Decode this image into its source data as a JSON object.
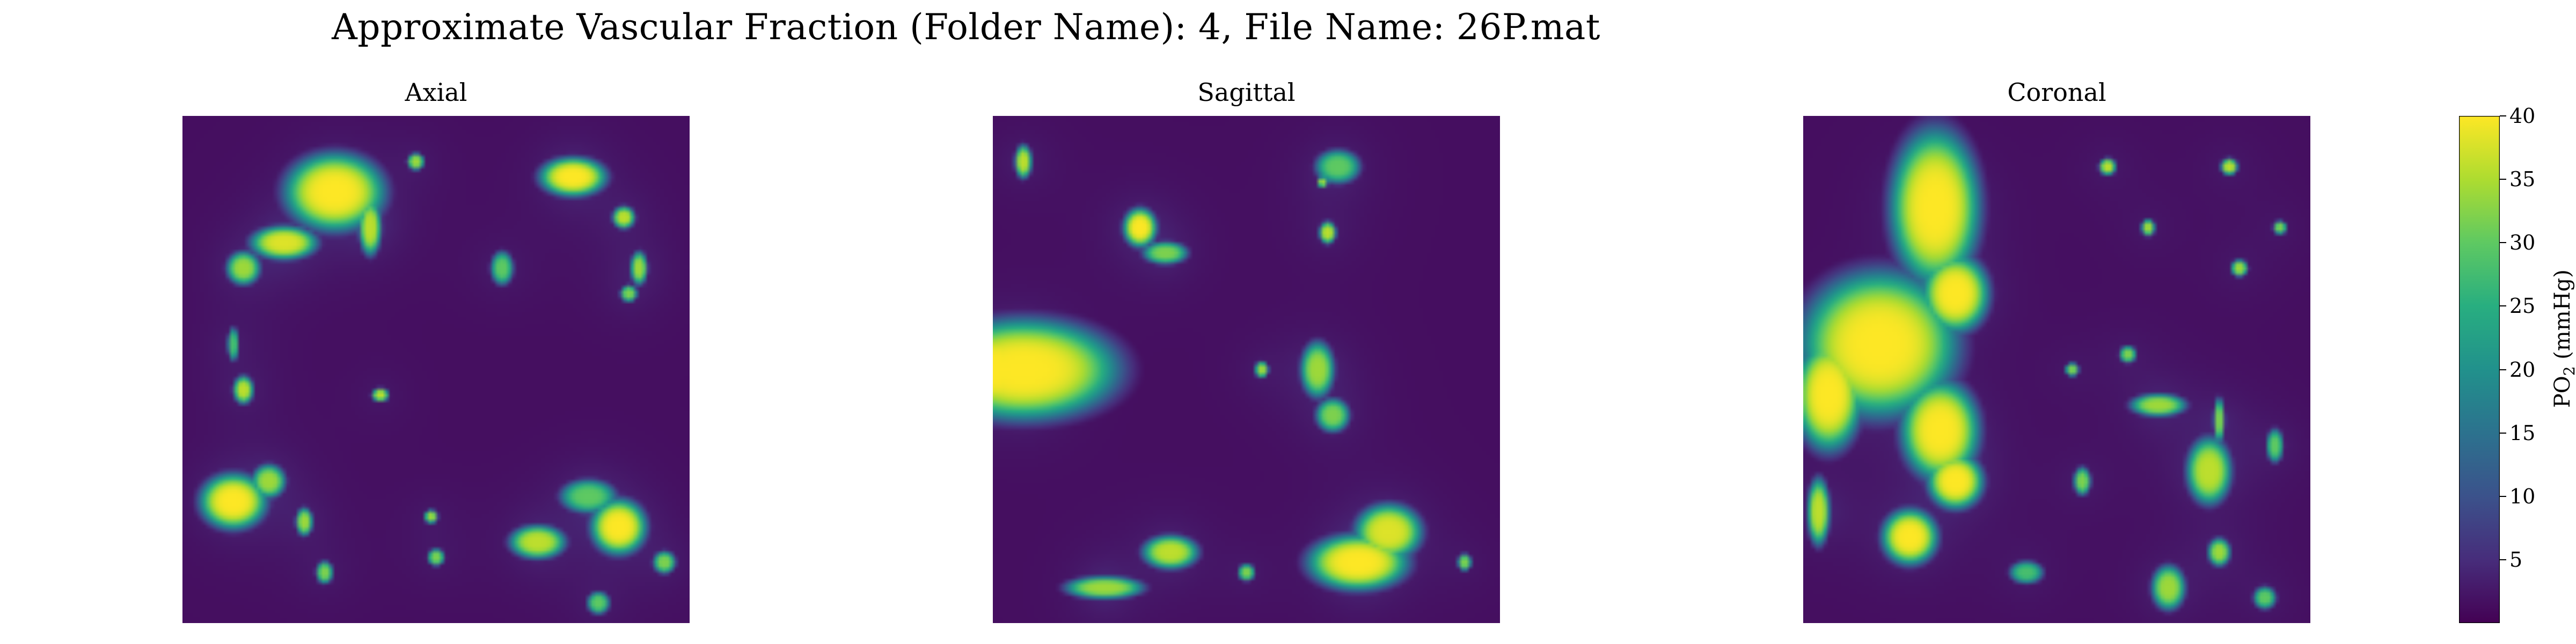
{
  "figure": {
    "suptitle": "Approximate Vascular Fraction (Folder Name): 4, File Name: 26P.mat"
  },
  "chart_data": {
    "type": "heatmap",
    "colormap": "viridis",
    "panels": [
      {
        "title": "Axial",
        "hotspots": [
          {
            "x": 0.3,
            "y": 0.15,
            "rx": 0.09,
            "ry": 0.07,
            "v": 40
          },
          {
            "x": 0.2,
            "y": 0.25,
            "rx": 0.06,
            "ry": 0.03,
            "v": 38
          },
          {
            "x": 0.12,
            "y": 0.3,
            "rx": 0.03,
            "ry": 0.03,
            "v": 34
          },
          {
            "x": 0.37,
            "y": 0.22,
            "rx": 0.02,
            "ry": 0.05,
            "v": 36
          },
          {
            "x": 0.46,
            "y": 0.09,
            "rx": 0.015,
            "ry": 0.015,
            "v": 34
          },
          {
            "x": 0.77,
            "y": 0.12,
            "rx": 0.06,
            "ry": 0.035,
            "v": 40
          },
          {
            "x": 0.87,
            "y": 0.2,
            "rx": 0.02,
            "ry": 0.02,
            "v": 36
          },
          {
            "x": 0.9,
            "y": 0.3,
            "rx": 0.015,
            "ry": 0.03,
            "v": 34
          },
          {
            "x": 0.63,
            "y": 0.3,
            "rx": 0.02,
            "ry": 0.03,
            "v": 30
          },
          {
            "x": 0.88,
            "y": 0.35,
            "rx": 0.015,
            "ry": 0.015,
            "v": 32
          },
          {
            "x": 0.12,
            "y": 0.54,
            "rx": 0.018,
            "ry": 0.025,
            "v": 36
          },
          {
            "x": 0.1,
            "y": 0.45,
            "rx": 0.01,
            "ry": 0.03,
            "v": 28
          },
          {
            "x": 0.39,
            "y": 0.55,
            "rx": 0.015,
            "ry": 0.012,
            "v": 36
          },
          {
            "x": 0.1,
            "y": 0.76,
            "rx": 0.06,
            "ry": 0.05,
            "v": 40
          },
          {
            "x": 0.17,
            "y": 0.72,
            "rx": 0.03,
            "ry": 0.03,
            "v": 34
          },
          {
            "x": 0.24,
            "y": 0.8,
            "rx": 0.015,
            "ry": 0.025,
            "v": 34
          },
          {
            "x": 0.28,
            "y": 0.9,
            "rx": 0.015,
            "ry": 0.02,
            "v": 32
          },
          {
            "x": 0.49,
            "y": 0.79,
            "rx": 0.012,
            "ry": 0.012,
            "v": 34
          },
          {
            "x": 0.5,
            "y": 0.87,
            "rx": 0.015,
            "ry": 0.015,
            "v": 32
          },
          {
            "x": 0.7,
            "y": 0.84,
            "rx": 0.05,
            "ry": 0.03,
            "v": 36
          },
          {
            "x": 0.86,
            "y": 0.81,
            "rx": 0.05,
            "ry": 0.05,
            "v": 40
          },
          {
            "x": 0.8,
            "y": 0.75,
            "rx": 0.05,
            "ry": 0.03,
            "v": 30
          },
          {
            "x": 0.95,
            "y": 0.88,
            "rx": 0.02,
            "ry": 0.02,
            "v": 32
          },
          {
            "x": 0.82,
            "y": 0.96,
            "rx": 0.02,
            "ry": 0.02,
            "v": 30
          }
        ]
      },
      {
        "title": "Sagittal",
        "hotspots": [
          {
            "x": 0.06,
            "y": 0.5,
            "rx": 0.17,
            "ry": 0.09,
            "v": 40
          },
          {
            "x": 0.01,
            "y": 0.5,
            "rx": 0.05,
            "ry": 0.08,
            "v": 40
          },
          {
            "x": 0.06,
            "y": 0.09,
            "rx": 0.015,
            "ry": 0.03,
            "v": 36
          },
          {
            "x": 0.29,
            "y": 0.22,
            "rx": 0.03,
            "ry": 0.035,
            "v": 40
          },
          {
            "x": 0.34,
            "y": 0.27,
            "rx": 0.04,
            "ry": 0.02,
            "v": 32
          },
          {
            "x": 0.68,
            "y": 0.1,
            "rx": 0.04,
            "ry": 0.03,
            "v": 30
          },
          {
            "x": 0.66,
            "y": 0.23,
            "rx": 0.015,
            "ry": 0.02,
            "v": 36
          },
          {
            "x": 0.65,
            "y": 0.13,
            "rx": 0.01,
            "ry": 0.01,
            "v": 34
          },
          {
            "x": 0.64,
            "y": 0.5,
            "rx": 0.03,
            "ry": 0.05,
            "v": 34
          },
          {
            "x": 0.53,
            "y": 0.5,
            "rx": 0.012,
            "ry": 0.015,
            "v": 34
          },
          {
            "x": 0.67,
            "y": 0.59,
            "rx": 0.03,
            "ry": 0.03,
            "v": 32
          },
          {
            "x": 0.72,
            "y": 0.88,
            "rx": 0.09,
            "ry": 0.05,
            "v": 40
          },
          {
            "x": 0.78,
            "y": 0.82,
            "rx": 0.06,
            "ry": 0.05,
            "v": 38
          },
          {
            "x": 0.35,
            "y": 0.86,
            "rx": 0.05,
            "ry": 0.03,
            "v": 36
          },
          {
            "x": 0.22,
            "y": 0.93,
            "rx": 0.07,
            "ry": 0.02,
            "v": 34
          },
          {
            "x": 0.5,
            "y": 0.9,
            "rx": 0.015,
            "ry": 0.015,
            "v": 32
          },
          {
            "x": 0.93,
            "y": 0.88,
            "rx": 0.012,
            "ry": 0.015,
            "v": 32
          }
        ]
      },
      {
        "title": "Coronal",
        "hotspots": [
          {
            "x": 0.26,
            "y": 0.18,
            "rx": 0.08,
            "ry": 0.14,
            "v": 40
          },
          {
            "x": 0.3,
            "y": 0.35,
            "rx": 0.06,
            "ry": 0.07,
            "v": 40
          },
          {
            "x": 0.15,
            "y": 0.45,
            "rx": 0.14,
            "ry": 0.13,
            "v": 40
          },
          {
            "x": 0.05,
            "y": 0.55,
            "rx": 0.06,
            "ry": 0.1,
            "v": 40
          },
          {
            "x": 0.27,
            "y": 0.62,
            "rx": 0.07,
            "ry": 0.09,
            "v": 40
          },
          {
            "x": 0.3,
            "y": 0.72,
            "rx": 0.05,
            "ry": 0.05,
            "v": 40
          },
          {
            "x": 0.03,
            "y": 0.78,
            "rx": 0.02,
            "ry": 0.06,
            "v": 36
          },
          {
            "x": 0.21,
            "y": 0.83,
            "rx": 0.05,
            "ry": 0.05,
            "v": 40
          },
          {
            "x": 0.6,
            "y": 0.1,
            "rx": 0.015,
            "ry": 0.015,
            "v": 36
          },
          {
            "x": 0.84,
            "y": 0.1,
            "rx": 0.015,
            "ry": 0.015,
            "v": 36
          },
          {
            "x": 0.68,
            "y": 0.22,
            "rx": 0.012,
            "ry": 0.015,
            "v": 34
          },
          {
            "x": 0.86,
            "y": 0.3,
            "rx": 0.015,
            "ry": 0.015,
            "v": 34
          },
          {
            "x": 0.94,
            "y": 0.22,
            "rx": 0.012,
            "ry": 0.012,
            "v": 32
          },
          {
            "x": 0.7,
            "y": 0.57,
            "rx": 0.05,
            "ry": 0.02,
            "v": 34
          },
          {
            "x": 0.8,
            "y": 0.7,
            "rx": 0.04,
            "ry": 0.06,
            "v": 36
          },
          {
            "x": 0.82,
            "y": 0.6,
            "rx": 0.01,
            "ry": 0.04,
            "v": 32
          },
          {
            "x": 0.53,
            "y": 0.5,
            "rx": 0.012,
            "ry": 0.012,
            "v": 32
          },
          {
            "x": 0.64,
            "y": 0.47,
            "rx": 0.015,
            "ry": 0.015,
            "v": 32
          },
          {
            "x": 0.93,
            "y": 0.65,
            "rx": 0.015,
            "ry": 0.03,
            "v": 30
          },
          {
            "x": 0.55,
            "y": 0.72,
            "rx": 0.015,
            "ry": 0.025,
            "v": 32
          },
          {
            "x": 0.82,
            "y": 0.86,
            "rx": 0.02,
            "ry": 0.025,
            "v": 34
          },
          {
            "x": 0.72,
            "y": 0.93,
            "rx": 0.03,
            "ry": 0.04,
            "v": 34
          },
          {
            "x": 0.91,
            "y": 0.95,
            "rx": 0.02,
            "ry": 0.02,
            "v": 30
          },
          {
            "x": 0.44,
            "y": 0.9,
            "rx": 0.03,
            "ry": 0.02,
            "v": 28
          }
        ]
      }
    ],
    "colorbar": {
      "label_main": "PO",
      "label_sub": "2",
      "label_unit": "(mmHg)",
      "vmin": 0,
      "vmax": 40,
      "ticks": [
        "5",
        "10",
        "15",
        "20",
        "25",
        "30",
        "35",
        "40"
      ]
    }
  }
}
